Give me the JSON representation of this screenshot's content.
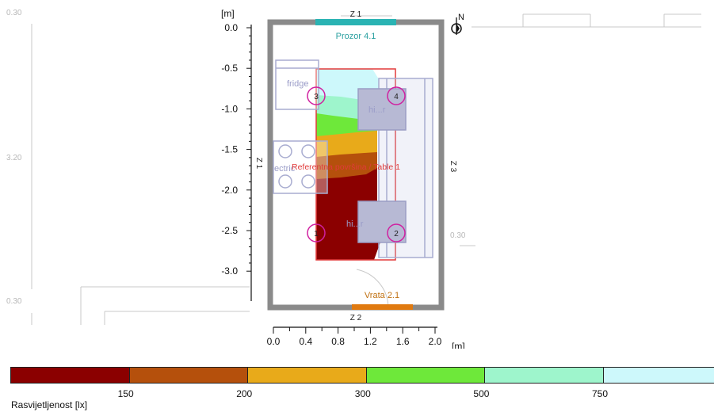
{
  "axis": {
    "unit_y": "[m]",
    "unit_x": "[m]",
    "y_ticks": [
      "0.0",
      "-0.5",
      "-1.0",
      "-1.5",
      "-2.0",
      "-2.5",
      "-3.0"
    ],
    "x_ticks": [
      "0.0",
      "0.4",
      "0.8",
      "1.2",
      "1.6",
      "2.0"
    ]
  },
  "dims": {
    "left_top": "0.30",
    "left_mid": "3.20",
    "left_bottom": "0.30",
    "right_small": "0.30",
    "top_wall": "Z 1",
    "left_wall": "Z 1",
    "right_wall": "Z 3",
    "bottom_wall": "Z 2"
  },
  "north": "N",
  "labels": {
    "window": "Prozor 4.1",
    "door": "Vrata 2.1",
    "fridge": "fridge",
    "hiend_top": "hi...r",
    "hiend_bottom": "hi...r",
    "electric": "ectric",
    "surface": "Referentna površina / Table 1",
    "points": [
      "1",
      "2",
      "3",
      "4"
    ]
  },
  "legend": {
    "title": "Rasvijetljenost [lx]",
    "thresholds": [
      "150",
      "200",
      "300",
      "500",
      "750"
    ],
    "colors": [
      "#8b0000",
      "#b5500c",
      "#e8aa1a",
      "#6ee83a",
      "#9ef5cc",
      "#cdf8fb"
    ]
  }
}
